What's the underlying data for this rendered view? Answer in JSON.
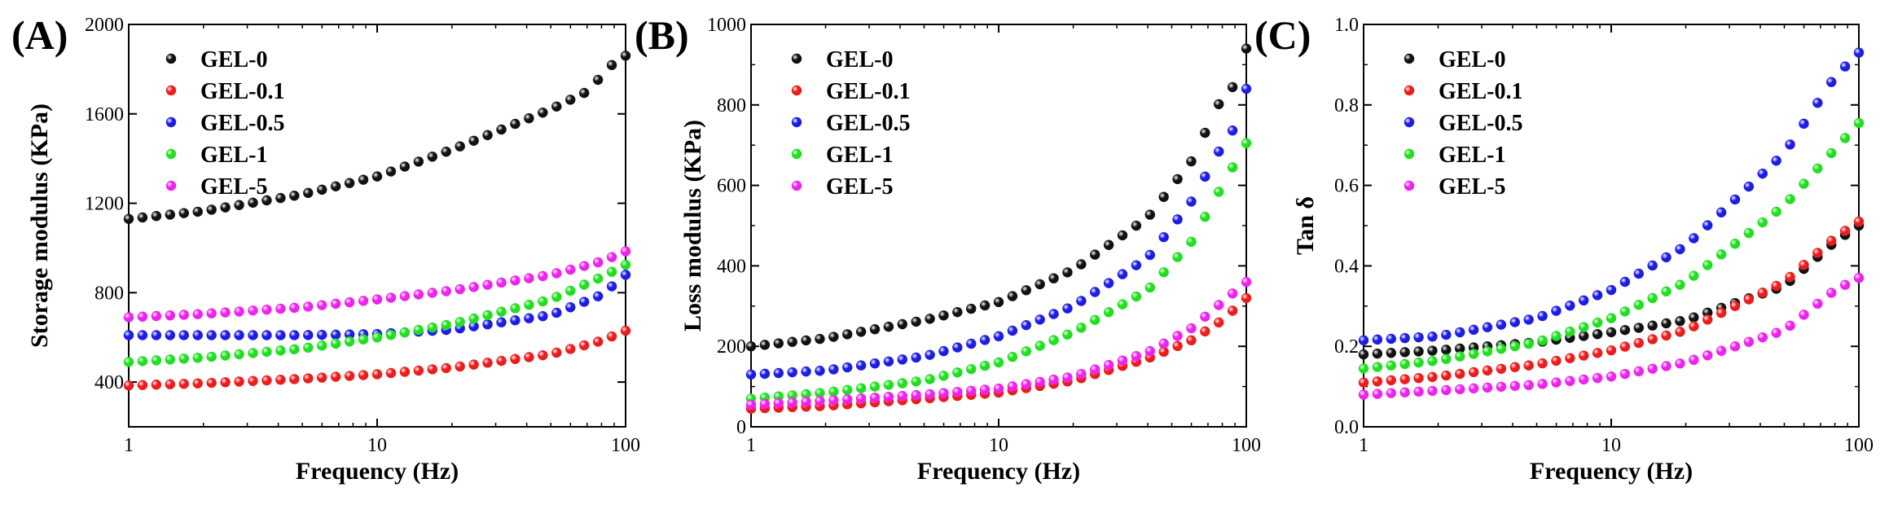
{
  "figure": {
    "colors": {
      "GEL-0": "#111111",
      "GEL-0.1": "#ee1b1b",
      "GEL-0.5": "#1c1ce6",
      "GEL-1": "#1fe01f",
      "GEL-5": "#ee22ee"
    }
  },
  "chart_data": [
    {
      "panel": "(A)",
      "type": "scatter",
      "xscale": "log",
      "xlim": [
        1,
        100
      ],
      "ylim": [
        200,
        2000
      ],
      "xticks": [
        "1",
        "10",
        "100"
      ],
      "yticks": [
        "400",
        "800",
        "1200",
        "1600",
        "2000"
      ],
      "xlabel": "Frequency (Hz)",
      "ylabel": "Storage modulus (KPa)",
      "legend_position": "top-left",
      "series": [
        {
          "name": "GEL-0",
          "anchors": [
            [
              1,
              1130
            ],
            [
              2,
              1165
            ],
            [
              5,
              1240
            ],
            [
              10,
              1320
            ],
            [
              20,
              1440
            ],
            [
              50,
              1620
            ],
            [
              70,
              1700
            ],
            [
              90,
              1830
            ],
            [
              100,
              1860
            ]
          ]
        },
        {
          "name": "GEL-0.1",
          "anchors": [
            [
              1,
              385
            ],
            [
              2,
              395
            ],
            [
              5,
              415
            ],
            [
              10,
              435
            ],
            [
              20,
              465
            ],
            [
              50,
              525
            ],
            [
              80,
              585
            ],
            [
              100,
              630
            ]
          ]
        },
        {
          "name": "GEL-0.5",
          "anchors": [
            [
              1,
              610
            ],
            [
              2,
              610
            ],
            [
              5,
              610
            ],
            [
              10,
              615
            ],
            [
              20,
              635
            ],
            [
              50,
              700
            ],
            [
              80,
              790
            ],
            [
              100,
              880
            ]
          ]
        },
        {
          "name": "GEL-1",
          "anchors": [
            [
              1,
              490
            ],
            [
              2,
              510
            ],
            [
              5,
              550
            ],
            [
              10,
              600
            ],
            [
              20,
              660
            ],
            [
              50,
              770
            ],
            [
              80,
              870
            ],
            [
              100,
              925
            ]
          ]
        },
        {
          "name": "GEL-5",
          "anchors": [
            [
              1,
              690
            ],
            [
              2,
              705
            ],
            [
              5,
              735
            ],
            [
              10,
              770
            ],
            [
              20,
              810
            ],
            [
              50,
              880
            ],
            [
              80,
              940
            ],
            [
              100,
              985
            ]
          ]
        }
      ]
    },
    {
      "panel": "(B)",
      "type": "scatter",
      "xscale": "log",
      "xlim": [
        1,
        100
      ],
      "ylim": [
        0,
        1000
      ],
      "xticks": [
        "1",
        "10",
        "100"
      ],
      "yticks": [
        "0",
        "200",
        "400",
        "600",
        "800",
        "1000"
      ],
      "xlabel": "Frequency (Hz)",
      "ylabel": "Loss modulus (KPa)",
      "legend_position": "top-left",
      "series": [
        {
          "name": "GEL-0",
          "anchors": [
            [
              1,
              200
            ],
            [
              2,
              220
            ],
            [
              5,
              265
            ],
            [
              10,
              310
            ],
            [
              20,
              390
            ],
            [
              40,
              520
            ],
            [
              60,
              660
            ],
            [
              80,
              820
            ],
            [
              90,
              850
            ],
            [
              100,
              940
            ]
          ]
        },
        {
          "name": "GEL-0.1",
          "anchors": [
            [
              1,
              45
            ],
            [
              2,
              52
            ],
            [
              5,
              70
            ],
            [
              10,
              85
            ],
            [
              20,
              115
            ],
            [
              40,
              170
            ],
            [
              60,
              215
            ],
            [
              80,
              265
            ],
            [
              100,
              320
            ]
          ]
        },
        {
          "name": "GEL-0.5",
          "anchors": [
            [
              1,
              130
            ],
            [
              2,
              140
            ],
            [
              5,
              175
            ],
            [
              10,
              225
            ],
            [
              20,
              300
            ],
            [
              40,
              420
            ],
            [
              60,
              560
            ],
            [
              80,
              700
            ],
            [
              90,
              745
            ],
            [
              100,
              840
            ]
          ]
        },
        {
          "name": "GEL-1",
          "anchors": [
            [
              1,
              70
            ],
            [
              2,
              85
            ],
            [
              5,
              115
            ],
            [
              10,
              160
            ],
            [
              20,
              235
            ],
            [
              40,
              340
            ],
            [
              60,
              460
            ],
            [
              80,
              600
            ],
            [
              100,
              705
            ]
          ]
        },
        {
          "name": "GEL-5",
          "anchors": [
            [
              1,
              55
            ],
            [
              2,
              65
            ],
            [
              5,
              80
            ],
            [
              10,
              95
            ],
            [
              20,
              125
            ],
            [
              40,
              185
            ],
            [
              60,
              245
            ],
            [
              80,
              310
            ],
            [
              100,
              360
            ]
          ]
        }
      ]
    },
    {
      "panel": "(C)",
      "type": "scatter",
      "xscale": "log",
      "xlim": [
        1,
        100
      ],
      "ylim": [
        0,
        1.0
      ],
      "xticks": [
        "1",
        "10",
        "100"
      ],
      "yticks": [
        "0.0",
        "0.2",
        "0.4",
        "0.6",
        "0.8",
        "1.0"
      ],
      "xlabel": "Frequency (Hz)",
      "ylabel": "Tan δ",
      "legend_position": "top-left",
      "series": [
        {
          "name": "GEL-0",
          "anchors": [
            [
              1,
              0.18
            ],
            [
              2,
              0.19
            ],
            [
              5,
              0.21
            ],
            [
              10,
              0.235
            ],
            [
              20,
              0.265
            ],
            [
              50,
              0.35
            ],
            [
              80,
              0.46
            ],
            [
              100,
              0.5
            ]
          ]
        },
        {
          "name": "GEL-0.1",
          "anchors": [
            [
              1,
              0.11
            ],
            [
              2,
              0.125
            ],
            [
              5,
              0.155
            ],
            [
              10,
              0.19
            ],
            [
              20,
              0.24
            ],
            [
              50,
              0.36
            ],
            [
              80,
              0.47
            ],
            [
              100,
              0.51
            ]
          ]
        },
        {
          "name": "GEL-0.5",
          "anchors": [
            [
              1,
              0.215
            ],
            [
              2,
              0.225
            ],
            [
              5,
              0.27
            ],
            [
              10,
              0.34
            ],
            [
              20,
              0.45
            ],
            [
              50,
              0.68
            ],
            [
              80,
              0.87
            ],
            [
              100,
              0.93
            ]
          ]
        },
        {
          "name": "GEL-1",
          "anchors": [
            [
              1,
              0.145
            ],
            [
              2,
              0.165
            ],
            [
              5,
              0.21
            ],
            [
              10,
              0.27
            ],
            [
              20,
              0.36
            ],
            [
              50,
              0.55
            ],
            [
              80,
              0.69
            ],
            [
              100,
              0.755
            ]
          ]
        },
        {
          "name": "GEL-5",
          "anchors": [
            [
              1,
              0.08
            ],
            [
              2,
              0.09
            ],
            [
              5,
              0.105
            ],
            [
              10,
              0.125
            ],
            [
              20,
              0.16
            ],
            [
              50,
              0.24
            ],
            [
              80,
              0.34
            ],
            [
              100,
              0.37
            ]
          ]
        }
      ]
    }
  ]
}
